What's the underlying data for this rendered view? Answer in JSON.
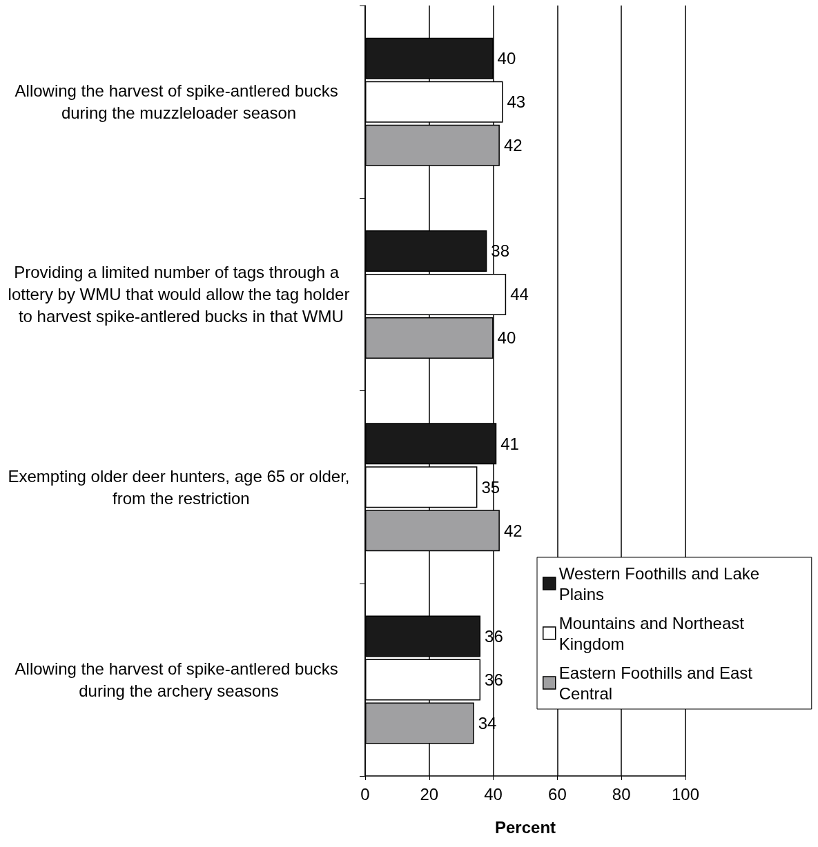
{
  "chart_data": {
    "type": "bar",
    "orientation": "horizontal",
    "xlabel": "Percent",
    "categories": [
      "Allowing the harvest of spike-antlered bucks during the muzzleloader season",
      "Providing a limited number of tags through a lottery by WMU that would allow the tag holder to harvest spike-antlered bucks in that WMU",
      "Exempting older deer hunters, age 65 or older, from the restriction",
      "Allowing the harvest of spike-antlered bucks during the archery seasons"
    ],
    "series": [
      {
        "name": "Western Foothills and Lake Plains",
        "color": "#1a1a1a",
        "values": [
          40,
          38,
          41,
          36
        ]
      },
      {
        "name": "Mountains and Northeast Kingdom",
        "color": "#ffffff",
        "values": [
          43,
          44,
          35,
          36
        ]
      },
      {
        "name": "Eastern Foothills and East Central",
        "color": "#a0a0a2",
        "values": [
          42,
          40,
          42,
          34
        ]
      }
    ],
    "xlim": [
      0,
      100
    ],
    "xticks": [
      0,
      20,
      40,
      60,
      80,
      100
    ],
    "grid": "x",
    "legend": "bottom right",
    "data_labels": true
  }
}
